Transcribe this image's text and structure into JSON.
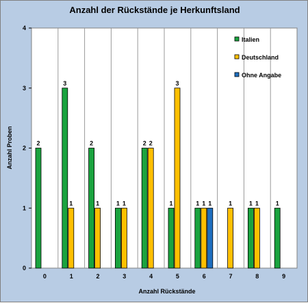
{
  "chart_data": {
    "type": "bar",
    "title": "Anzahl der Rückstände je Herkunftsland",
    "xlabel": "Anzahl Rückstände",
    "ylabel": "Anzahl Proben",
    "categories": [
      "0",
      "1",
      "2",
      "3",
      "4",
      "5",
      "6",
      "7",
      "8",
      "9"
    ],
    "ylim": [
      0,
      4
    ],
    "yticks": [
      0,
      1,
      2,
      3,
      4
    ],
    "grid": "vertical category separators",
    "legend_position": "top-right",
    "series": [
      {
        "name": "Italien",
        "color": "#1aa33f",
        "values": [
          2,
          3,
          2,
          1,
          2,
          1,
          1,
          null,
          1,
          1
        ]
      },
      {
        "name": "Deutschland",
        "color": "#ffc000",
        "values": [
          null,
          1,
          1,
          1,
          2,
          3,
          1,
          1,
          1,
          null
        ]
      },
      {
        "name": "Ohne Angabe",
        "color": "#1f6fbf",
        "values": [
          null,
          null,
          null,
          null,
          null,
          null,
          1,
          null,
          null,
          null
        ]
      }
    ]
  }
}
